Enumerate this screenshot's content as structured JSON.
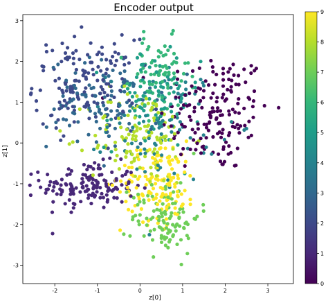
{
  "chart_data": {
    "type": "scatter",
    "title": "Encoder output",
    "xlabel": "z[0]",
    "ylabel": "z[1]",
    "xlim": [
      -2.75,
      3.6
    ],
    "ylim": [
      -3.45,
      3.15
    ],
    "xticks": [
      -2,
      -1,
      0,
      1,
      2,
      3
    ],
    "yticks": [
      -3,
      -2,
      -1,
      0,
      1,
      2,
      3
    ],
    "grid": false,
    "colorbar": {
      "colormap": "viridis",
      "range": [
        0,
        9
      ],
      "ticks": [
        0,
        1,
        2,
        3,
        4,
        5,
        6,
        7,
        8,
        9
      ]
    },
    "clusters": [
      {
        "label": 0,
        "color": "#440154",
        "center": [
          1.75,
          0.75
        ],
        "spread": [
          0.65,
          0.75
        ],
        "count": 170
      },
      {
        "label": 1,
        "color": "#482878",
        "center": [
          -1.2,
          -1.05
        ],
        "spread": [
          0.55,
          0.28
        ],
        "count": 150
      },
      {
        "label": 2,
        "color": "#3e4989",
        "center": [
          -1.3,
          1.45
        ],
        "spread": [
          0.6,
          0.55
        ],
        "count": 150
      },
      {
        "label": 3,
        "color": "#31688e",
        "center": [
          -0.85,
          0.95
        ],
        "spread": [
          0.65,
          0.55
        ],
        "count": 110
      },
      {
        "label": 4,
        "color": "#26828e",
        "center": [
          0.55,
          0.45
        ],
        "spread": [
          0.65,
          0.7
        ],
        "count": 90
      },
      {
        "label": 5,
        "color": "#1f9e89",
        "center": [
          0.3,
          1.05
        ],
        "spread": [
          0.55,
          0.6
        ],
        "count": 90
      },
      {
        "label": 6,
        "color": "#35b779",
        "center": [
          0.45,
          1.65
        ],
        "spread": [
          0.35,
          0.45
        ],
        "count": 80
      },
      {
        "label": 7,
        "color": "#6ece58",
        "center": [
          0.6,
          -1.8
        ],
        "spread": [
          0.4,
          0.45
        ],
        "count": 110
      },
      {
        "label": 8,
        "color": "#b5de2b",
        "center": [
          0.0,
          0.15
        ],
        "spread": [
          0.6,
          0.6
        ],
        "count": 120
      },
      {
        "label": 9,
        "color": "#fde725",
        "center": [
          0.45,
          -0.95
        ],
        "spread": [
          0.45,
          0.5
        ],
        "count": 140
      }
    ]
  }
}
